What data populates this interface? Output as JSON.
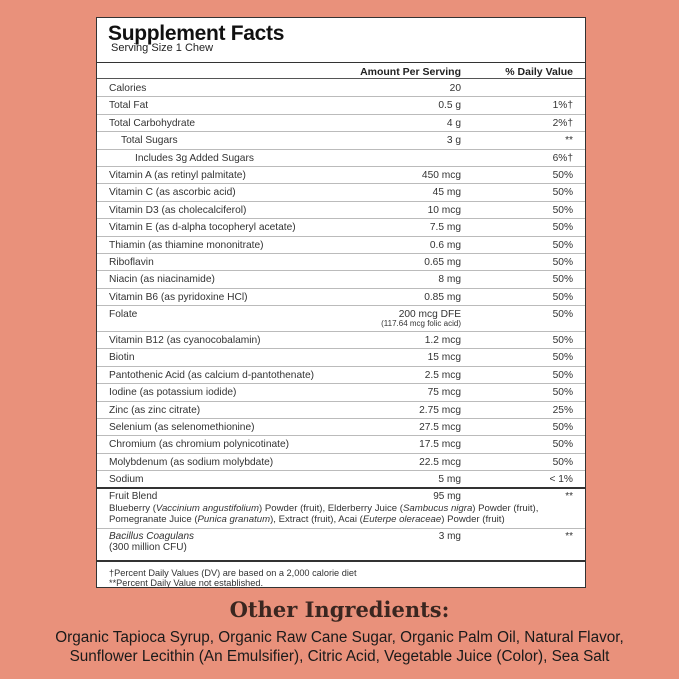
{
  "title": "Supplement Facts",
  "serving": "Serving Size 1 Chew",
  "headers": {
    "amount": "Amount Per Serving",
    "dv": "% Daily Value"
  },
  "rows": [
    {
      "name": "Calories",
      "amount": "20",
      "dv": ""
    },
    {
      "name": "Total Fat",
      "amount": "0.5 g",
      "dv": "1%†"
    },
    {
      "name": "Total Carbohydrate",
      "amount": "4 g",
      "dv": "2%†"
    },
    {
      "name": "Total Sugars",
      "amount": "3 g",
      "dv": "**"
    },
    {
      "name": "Includes 3g Added Sugars",
      "amount": "",
      "dv": "6%†"
    },
    {
      "name": "Vitamin A (as retinyl palmitate)",
      "amount": "450 mcg",
      "dv": "50%"
    },
    {
      "name": "Vitamin C (as ascorbic acid)",
      "amount": "45 mg",
      "dv": "50%"
    },
    {
      "name": "Vitamin D3 (as cholecalciferol)",
      "amount": "10 mcg",
      "dv": "50%"
    },
    {
      "name": "Vitamin E (as d-alpha tocopheryl acetate)",
      "amount": "7.5 mg",
      "dv": "50%"
    },
    {
      "name": "Thiamin (as thiamine mononitrate)",
      "amount": "0.6 mg",
      "dv": "50%"
    },
    {
      "name": "Riboflavin",
      "amount": "0.65 mg",
      "dv": "50%"
    },
    {
      "name": "Niacin (as niacinamide)",
      "amount": "8 mg",
      "dv": "50%"
    },
    {
      "name": "Vitamin B6 (as pyridoxine HCl)",
      "amount": "0.85 mg",
      "dv": "50%"
    },
    {
      "name": "Folate",
      "amount": "200 mcg DFE",
      "amount_sub": "(117.64 mcg folic acid)",
      "dv": "50%"
    },
    {
      "name": "Vitamin B12 (as cyanocobalamin)",
      "amount": "1.2 mcg",
      "dv": "50%"
    },
    {
      "name": "Biotin",
      "amount": "15 mcg",
      "dv": "50%"
    },
    {
      "name": "Pantothenic Acid (as calcium d-pantothenate)",
      "amount": "2.5 mcg",
      "dv": "50%"
    },
    {
      "name": "Iodine (as potassium iodide)",
      "amount": "75 mcg",
      "dv": "50%"
    },
    {
      "name": "Zinc (as zinc citrate)",
      "amount": "2.75 mcg",
      "dv": "25%"
    },
    {
      "name": "Selenium (as selenomethionine)",
      "amount": "27.5 mcg",
      "dv": "50%"
    },
    {
      "name": "Chromium (as chromium polynicotinate)",
      "amount": "17.5 mcg",
      "dv": "50%"
    },
    {
      "name": "Molybdenum (as sodium molybdate)",
      "amount": "22.5 mcg",
      "dv": "50%"
    },
    {
      "name": "Sodium",
      "amount": "5 mg",
      "dv": "< 1%"
    }
  ],
  "blend": {
    "name": "Fruit Blend",
    "amount": "95 mg",
    "dv": "**",
    "desc": [
      [
        "Blueberry (",
        ""
      ],
      [
        "Vaccinium angustifolium",
        "i"
      ],
      [
        ") Powder (fruit), Elderberry Juice (",
        ""
      ],
      [
        "Sambucus nigra",
        "i"
      ],
      [
        ") Powder (fruit), Pomegranate Juice (",
        ""
      ],
      [
        "Punica granatum",
        "i"
      ],
      [
        "), Extract (fruit), Acai (",
        ""
      ],
      [
        "Euterpe oleraceae",
        "i"
      ],
      [
        ") Powder (fruit)",
        ""
      ]
    ]
  },
  "bacillus": {
    "name": "Bacillus Coagulans",
    "sub": "(300 million CFU)",
    "amount": "3 mg",
    "dv": "**"
  },
  "footnotes": [
    "†Percent Daily Values (DV) are based on a 2,000 calorie diet",
    "**Percent Daily Value not established."
  ],
  "other_title": "Other Ingredients:",
  "other_lines": [
    "Organic Tapioca Syrup, Organic Raw Cane Sugar, Organic Palm Oil, Natural Flavor,",
    "Sunflower Lecithin (An Emulsifier), Citric Acid, Vegetable Juice (Color), Sea Salt"
  ]
}
